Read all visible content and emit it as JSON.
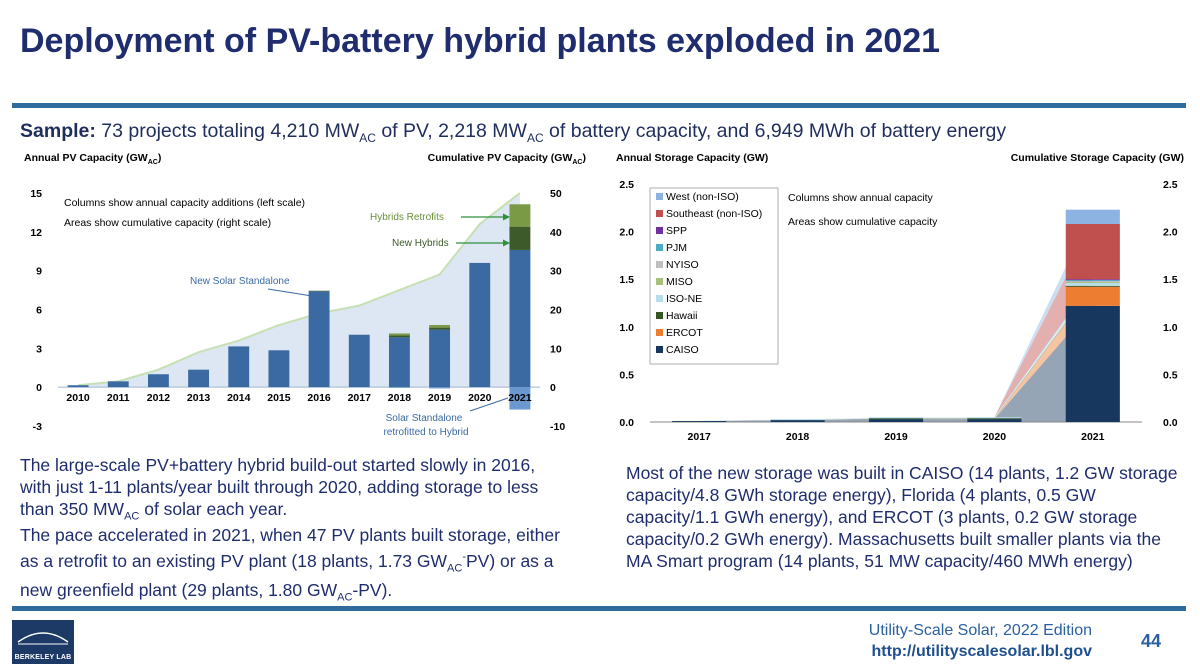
{
  "title": "Deployment of PV-battery hybrid plants exploded in 2021",
  "sample": {
    "label": "Sample:",
    "p1": " 73 projects totaling 4,210 MW",
    "sub1": "AC",
    "p2": " of PV, 2,218 MW",
    "sub2": "AC",
    "p3": " of battery capacity, and 6,949 MWh of battery energy"
  },
  "chart_data": [
    {
      "type": "bar",
      "title": "",
      "ylabel_left_main": "Annual PV Capacity (GW",
      "ylabel_left_sub": "AC",
      "ylabel_left_end": ")",
      "ylabel_right_main": "Cumulative PV Capacity (GW",
      "ylabel_right_sub": "AC",
      "ylabel_right_end": ")",
      "categories": [
        "2010",
        "2011",
        "2012",
        "2013",
        "2014",
        "2015",
        "2016",
        "2017",
        "2018",
        "2019",
        "2020",
        "2021"
      ],
      "ylim_left": [
        -3,
        15
      ],
      "yticks_left": [
        "-3",
        "0",
        "3",
        "6",
        "9",
        "12",
        "15"
      ],
      "ylim_right": [
        -10,
        50
      ],
      "yticks_right": [
        "-10",
        "0",
        "10",
        "20",
        "30",
        "40",
        "50"
      ],
      "series": [
        {
          "name": "New Solar Standalone",
          "color": "#3b6aa3",
          "values": [
            0.15,
            0.45,
            1.0,
            1.35,
            3.15,
            2.85,
            7.4,
            4.05,
            3.85,
            4.45,
            9.6,
            10.6
          ]
        },
        {
          "name": "New Hybrids",
          "color": "#3d5a2a",
          "values": [
            0,
            0,
            0,
            0,
            0,
            0,
            0.05,
            0,
            0.15,
            0.15,
            0,
            1.8
          ]
        },
        {
          "name": "Hybrids Retrofits",
          "color": "#7a9a45",
          "values": [
            0,
            0,
            0,
            0,
            0,
            0,
            0,
            0,
            0.15,
            0.2,
            0,
            1.73
          ]
        },
        {
          "name": "Solar Standalone retrofitted to Hybrid",
          "color": "#6a98cf",
          "values": [
            0,
            0,
            0,
            0,
            0,
            0,
            0,
            0,
            -0.05,
            -0.1,
            0,
            -1.73
          ]
        }
      ],
      "cumulative_area": [
        0.5,
        1.5,
        4.5,
        9.0,
        12.0,
        16.0,
        19.0,
        21.0,
        25.0,
        29.0,
        42.0,
        50.0
      ],
      "legend_note1": "Columns  show annual capacity additions (left scale)",
      "legend_note2": "Areas show cumulative capacity (right scale)",
      "annotations": {
        "new_solar": "New Solar Standalone",
        "hybrids_retrofits": "Hybrids Retrofits",
        "new_hybrids": "New Hybrids",
        "retro_line1": "Solar Standalone",
        "retro_line2": "retrofitted to Hybrid"
      }
    },
    {
      "type": "bar",
      "ylabel_left": "Annual Storage Capacity (GW)",
      "ylabel_right": "Cumulative Storage Capacity (GW)",
      "categories": [
        "2017",
        "2018",
        "2019",
        "2020",
        "2021"
      ],
      "ylim": [
        0,
        2.5
      ],
      "yticks": [
        "0.0",
        "0.5",
        "1.0",
        "1.5",
        "2.0",
        "2.5"
      ],
      "series": [
        {
          "name": "CAISO",
          "color": "#17375e",
          "values": [
            0.01,
            0.02,
            0.03,
            0.03,
            1.22
          ]
        },
        {
          "name": "ERCOT",
          "color": "#ed7d31",
          "values": [
            0,
            0,
            0,
            0,
            0.2
          ]
        },
        {
          "name": "Hawaii",
          "color": "#375623",
          "values": [
            0,
            0,
            0.01,
            0.01,
            0.01
          ]
        },
        {
          "name": "ISO-NE",
          "color": "#b7dee8",
          "values": [
            0,
            0.01,
            0.01,
            0.01,
            0.03
          ]
        },
        {
          "name": "MISO",
          "color": "#a9c27a",
          "values": [
            0,
            0,
            0,
            0,
            0.01
          ]
        },
        {
          "name": "NYISO",
          "color": "#bfbfbf",
          "values": [
            0,
            0,
            0,
            0,
            0.01
          ]
        },
        {
          "name": "PJM",
          "color": "#4bacc6",
          "values": [
            0,
            0,
            0,
            0,
            0.01
          ]
        },
        {
          "name": "SPP",
          "color": "#7030a0",
          "values": [
            0,
            0,
            0,
            0,
            0.01
          ]
        },
        {
          "name": "Southeast (non-ISO)",
          "color": "#c0504d",
          "values": [
            0,
            0,
            0,
            0,
            0.58
          ]
        },
        {
          "name": "West (non-ISO)",
          "color": "#8db3e2",
          "values": [
            0,
            0,
            0,
            0,
            0.15
          ]
        }
      ],
      "legend_order": [
        "West (non-ISO)",
        "Southeast (non-ISO)",
        "SPP",
        "PJM",
        "NYISO",
        "MISO",
        "ISO-NE",
        "Hawaii",
        "ERCOT",
        "CAISO"
      ],
      "note1": "Columns show annual capacity",
      "note2": "Areas show cumulative capacity"
    }
  ],
  "left_text": {
    "p1a": "The large-scale PV+battery hybrid build-out started slowly in 2016, with just 1-11 plants/year built through 2020, adding storage to less than 350 MW",
    "p1sub": "AC",
    "p1b": " of solar each year.",
    "p2a": "The pace accelerated in 2021, when 47 PV plants built storage, either as a retrofit to an existing PV plant (18 plants, 1.73 GW",
    "p2sub1": "AC",
    "p2sup1": "-",
    "p2b": "PV) or as a new greenfield plant (29 plants, 1.80 GW",
    "p2sub2": "AC",
    "p2c": "-PV)."
  },
  "right_text": "Most of the new storage was built in CAISO (14 plants, 1.2 GW storage capacity/4.8 GWh storage energy), Florida (4 plants, 0.5 GW capacity/1.1 GWh energy), and ERCOT (3 plants, 0.2 GW storage capacity/0.2 GWh energy).  Massachusetts built smaller plants via the MA Smart program (14 plants, 51 MW capacity/460 MWh energy)",
  "footer": {
    "source": "Utility-Scale Solar, 2022 Edition",
    "url": "http://utilityscalesolar.lbl.gov",
    "page": "44",
    "logo_text": "BERKELEY LAB"
  },
  "colors": {
    "title": "#1f2d6e",
    "rule": "#2e6a9b",
    "area_left": "#dde7f3",
    "area_left_edge": "#c6e0b4"
  }
}
